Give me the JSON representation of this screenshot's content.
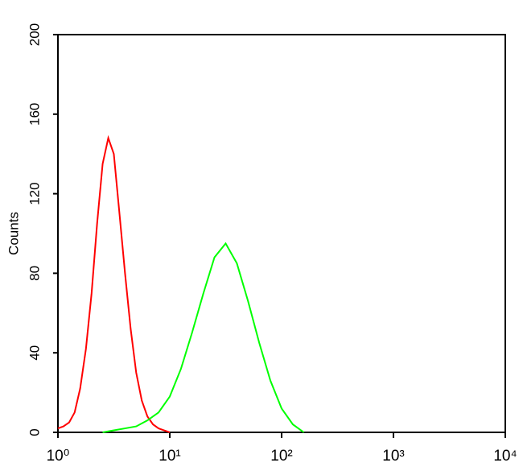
{
  "chart_data": {
    "type": "line",
    "y_label": "Counts",
    "x_log": true,
    "xlim": [
      1,
      10000
    ],
    "xticks": [
      {
        "value": 1,
        "label": "10⁰"
      },
      {
        "value": 10,
        "label": "10¹"
      },
      {
        "value": 100,
        "label": "10²"
      },
      {
        "value": 1000,
        "label": "10³"
      },
      {
        "value": 10000,
        "label": "10⁴"
      }
    ],
    "ylim": [
      0,
      200
    ],
    "yticks": [
      0,
      40,
      80,
      120,
      160,
      200
    ],
    "series": [
      {
        "color": "#ff0000",
        "x": [
          1,
          1.12,
          1.26,
          1.41,
          1.58,
          1.78,
          2,
          2.24,
          2.51,
          2.82,
          3.16,
          3.55,
          3.98,
          4.47,
          5.01,
          5.62,
          6.31,
          7.08,
          7.94,
          8.91,
          10
        ],
        "values": [
          2,
          3,
          5,
          10,
          22,
          42,
          70,
          105,
          135,
          148,
          140,
          110,
          80,
          52,
          30,
          16,
          8,
          4,
          2,
          1,
          0
        ]
      },
      {
        "color": "#00ff00",
        "x": [
          2.51,
          3.16,
          3.98,
          5.01,
          6.31,
          7.94,
          10,
          12.6,
          15.8,
          20,
          25.1,
          31.6,
          39.8,
          50.1,
          63.1,
          79.4,
          100,
          126,
          158
        ],
        "values": [
          0,
          1,
          2,
          3,
          6,
          10,
          18,
          32,
          50,
          70,
          88,
          95,
          85,
          66,
          45,
          26,
          12,
          4,
          0
        ]
      }
    ]
  }
}
